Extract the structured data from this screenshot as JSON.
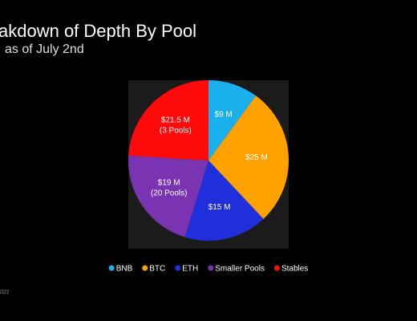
{
  "chart_data": {
    "type": "pie",
    "title": "akdown of Depth By Pool",
    "subtitle": "as of July 2nd",
    "footnote": "021",
    "categories": [
      "BNB",
      "BTC",
      "ETH",
      "Smaller Pools",
      "Stables"
    ],
    "values": [
      9,
      25,
      15,
      19,
      21.5
    ],
    "value_labels": [
      [
        "$9 M"
      ],
      [
        "$25 M"
      ],
      [
        "$15 M"
      ],
      [
        "$19 M",
        "(20 Pools)"
      ],
      [
        "$21.5 M",
        "(3 Pools)"
      ]
    ],
    "colors": [
      "#1ab0ee",
      "#ffa200",
      "#1f2fdc",
      "#7a34b2",
      "#ff0a0a"
    ],
    "legend": "bottom"
  }
}
